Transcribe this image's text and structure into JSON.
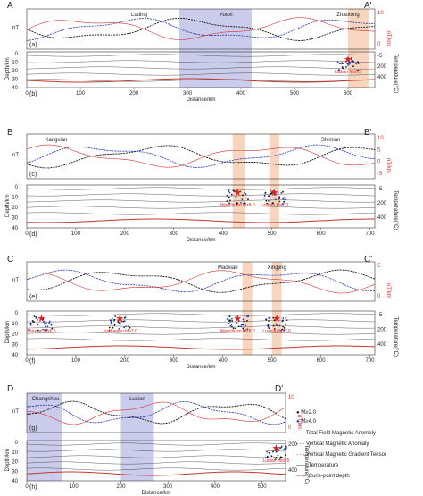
{
  "figure": {
    "panels": [
      {
        "letter_left": "A",
        "letter_right": "A'",
        "sub_top": "(a)",
        "sub_bottom": "(b)",
        "places": [
          {
            "name": "Luding",
            "x": 210
          },
          {
            "name": "Yuexi",
            "x": 372
          },
          {
            "name": "Zhaotong",
            "x": 600
          }
        ],
        "shaded": [
          {
            "from": 285,
            "to": 420,
            "color": "blue"
          },
          {
            "from": 600,
            "to": 640,
            "color": "orange"
          }
        ],
        "xmax": 650,
        "xticks": [
          "0",
          "100",
          "200",
          "300",
          "400",
          "500",
          "600"
        ],
        "x_label": "Distance/km",
        "left_unit": "nT",
        "right_unit": "nT/km",
        "right_ticks": [
          "10",
          "0"
        ],
        "temp_ticks": [
          "-5",
          "200",
          "400"
        ],
        "depth_ticks": [
          "0",
          "10",
          "20",
          "30",
          "40"
        ],
        "eq_labels": [
          {
            "text": "Ludian Ms6.5",
            "x": 600
          }
        ]
      },
      {
        "letter_left": "B",
        "letter_right": "B'",
        "sub_top": "(c)",
        "sub_bottom": "(d)",
        "places": [
          {
            "name": "Kangxian",
            "x": 60
          },
          {
            "name": "Shimian",
            "x": 620
          }
        ],
        "shaded": [
          {
            "from": 420,
            "to": 445,
            "color": "orange"
          },
          {
            "from": 495,
            "to": 515,
            "color": "orange"
          }
        ],
        "xmax": 710,
        "xticks": [
          "0",
          "100",
          "200",
          "300",
          "400",
          "500",
          "600",
          "700"
        ],
        "x_label": "Distance/km",
        "left_unit": "nT",
        "right_unit": "nT/km",
        "right_ticks": [
          "10",
          "5",
          "0",
          "-5"
        ],
        "temp_ticks": [
          "-5",
          "200",
          "400"
        ],
        "depth_ticks": [
          "0",
          "10",
          "20",
          "30",
          "40"
        ],
        "eq_labels": [
          {
            "text": "Wenchuan Ms8.0",
            "x": 430
          },
          {
            "text": "Lushan Ms7.0",
            "x": 505
          }
        ]
      },
      {
        "letter_left": "C",
        "letter_right": "C'",
        "sub_top": "(e)",
        "sub_bottom": "(f)",
        "places": [
          {
            "name": "Maoxian",
            "x": 410
          },
          {
            "name": "Xingjing",
            "x": 510
          }
        ],
        "shaded": [
          {
            "from": 440,
            "to": 460,
            "color": "orange"
          },
          {
            "from": 500,
            "to": 520,
            "color": "orange"
          }
        ],
        "xmax": 710,
        "xticks": [
          "0",
          "100",
          "200",
          "300",
          "400",
          "500",
          "600",
          "700"
        ],
        "x_label": "Distance/km",
        "left_unit": "nT",
        "right_unit": "nT/km",
        "right_ticks": [
          "5",
          "0"
        ],
        "temp_ticks": [
          "-5",
          "200",
          "400"
        ],
        "depth_ticks": [
          "0",
          "10",
          "20",
          "30",
          "40"
        ],
        "eq_labels": [
          {
            "text": "Minxian Ms6.6",
            "x": 30
          },
          {
            "text": "Jiuzhaigou Ms7.0",
            "x": 190
          },
          {
            "text": "Wenchuan Ms8.0",
            "x": 430
          },
          {
            "text": "Lushan Ms7.0",
            "x": 510
          }
        ]
      },
      {
        "letter_left": "D",
        "letter_right": "D'",
        "sub_top": "(g)",
        "sub_bottom": "(h)",
        "places": [
          {
            "name": "Changshou",
            "x": 40
          },
          {
            "name": "Luxian",
            "x": 235
          }
        ],
        "shaded": [
          {
            "from": 0,
            "to": 75,
            "color": "blue"
          },
          {
            "from": 200,
            "to": 270,
            "color": "blue"
          }
        ],
        "xmax": 550,
        "xticks": [
          "0",
          "100",
          "200",
          "300",
          "400",
          "500"
        ],
        "x_label": "Distance/km",
        "left_unit": "nT",
        "right_unit": "nT/km",
        "right_ticks": [
          "10",
          "0"
        ],
        "temp_ticks": [
          "200",
          "400"
        ],
        "depth_ticks": [
          "0",
          "10",
          "20",
          "30",
          "40"
        ],
        "eq_labels": [
          {
            "text": "Ludian Ms6.5",
            "x": 530
          }
        ]
      }
    ],
    "temperature_label": "Temperature(°C)",
    "depth_label": "Depth/km",
    "legend": {
      "magnitude_small": "M≥2.0",
      "magnitude_large": "M≥4.0",
      "lines": [
        "Total Field Magnetic Anomaly",
        "Vertical Magnetic Anomaly",
        "Vertical Magnetic Gradient Tensor",
        "Temperature",
        "Curie-point depth"
      ]
    },
    "colors": {
      "blue_shade": "#b9b9e6",
      "orange_shade": "#f6c7a9",
      "total_field": "#111111",
      "vertical": "#2233aa",
      "gradient": "#d43030",
      "temperature": "#333333",
      "curie": "#c0392b",
      "small_eq": "#111111",
      "large_eq": "#1d3fd0",
      "star": "#e02020"
    }
  }
}
